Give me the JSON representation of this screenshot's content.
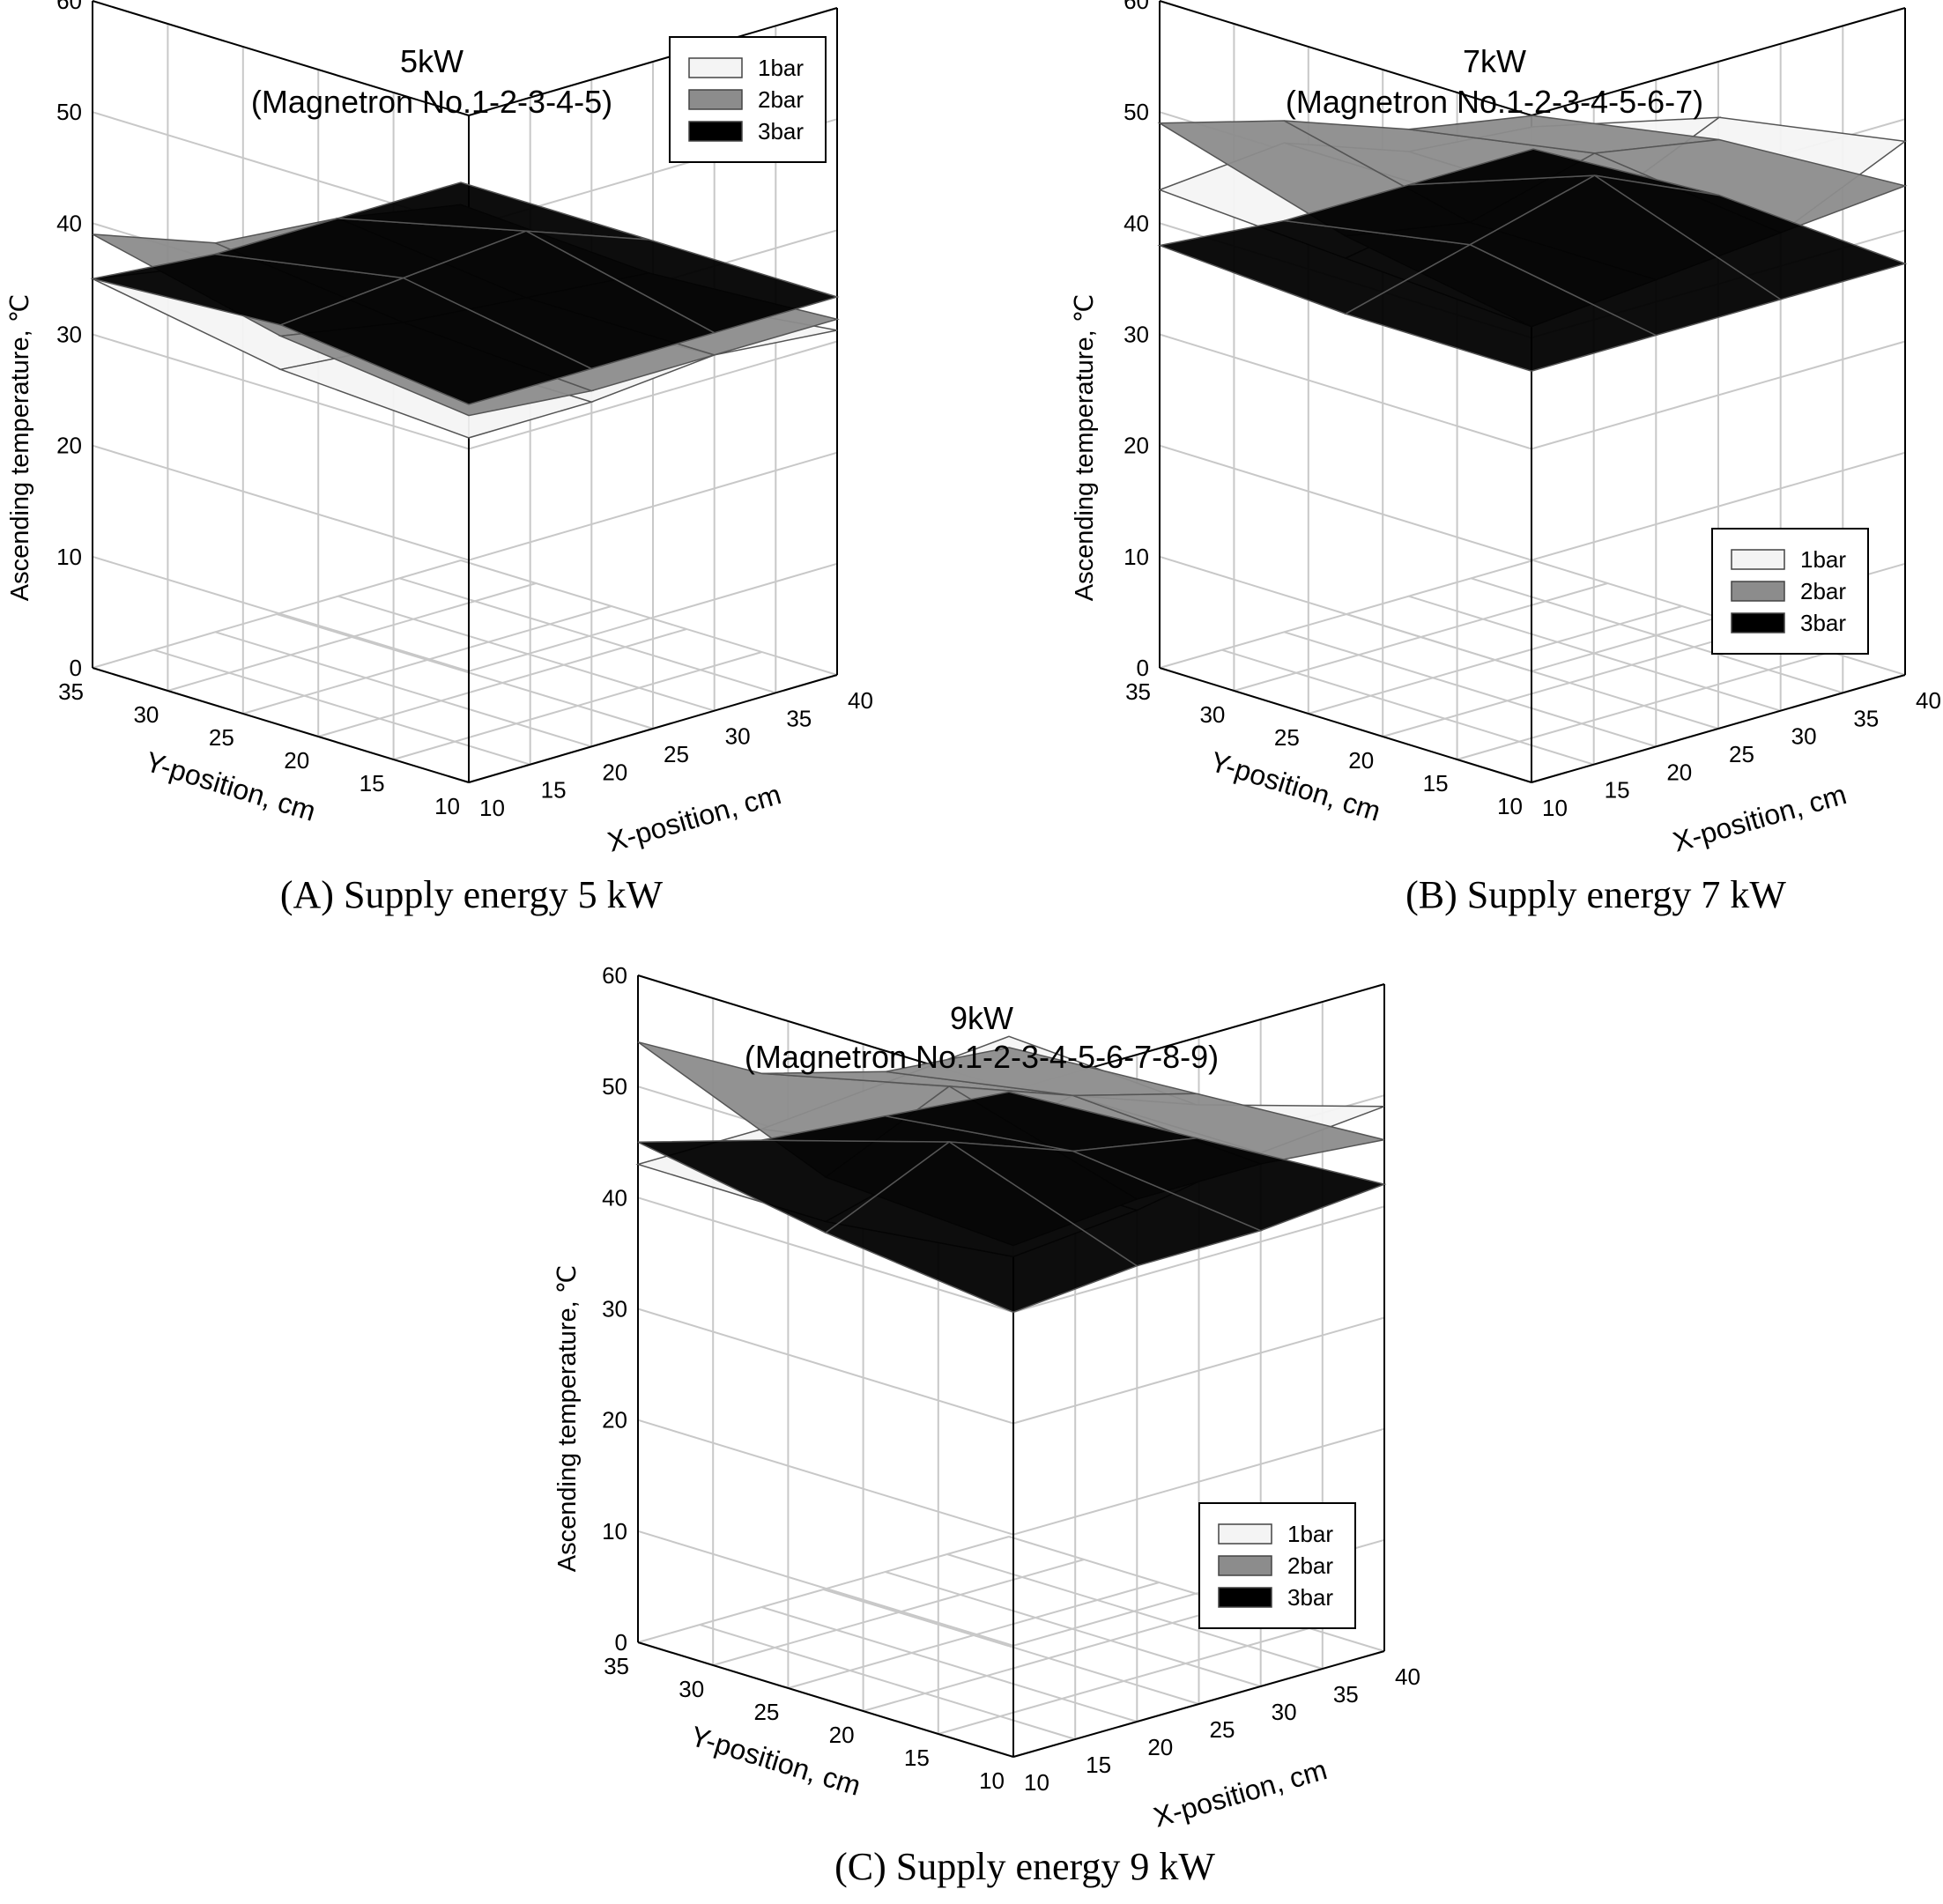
{
  "chart_data": [
    {
      "type": "surface3d",
      "title": "5kW",
      "subtitle": "(Magnetron No.1-2-3-4-5)",
      "caption": "(A) Supply energy 5 kW",
      "zlabel": "Ascending temperature, ℃",
      "xlabel": "X-position, cm",
      "ylabel": "Y-position, cm",
      "zlim": [
        0,
        60
      ],
      "z_ticks": [
        "0",
        "10",
        "20",
        "30",
        "40",
        "50",
        "60"
      ],
      "x_ticks": [
        "10",
        "15",
        "20",
        "25",
        "30",
        "35",
        "40"
      ],
      "y_ticks": [
        "10",
        "15",
        "20",
        "25",
        "30",
        "35"
      ],
      "legend_position": "top-right",
      "series": [
        {
          "name": "1bar",
          "color": "#f4f4f4",
          "grid": [
            [
              35,
              33,
              31,
              30
            ],
            [
              32,
              31,
              31,
              29
            ],
            [
              31,
              31,
              32,
              31
            ]
          ]
        },
        {
          "name": "2bar",
          "color": "#8c8c8c",
          "grid": [
            [
              39,
              35,
              34,
              32
            ],
            [
              35,
              33,
              32,
              31
            ],
            [
              33,
              32,
              32,
              32
            ]
          ]
        },
        {
          "name": "3bar",
          "color": "#000000",
          "grid": [
            [
              35,
              34,
              34,
              34
            ],
            [
              36,
              37,
              38,
              34
            ],
            [
              34,
              34,
              34,
              34
            ]
          ]
        }
      ]
    },
    {
      "type": "surface3d",
      "title": "7kW",
      "subtitle": "(Magnetron No.1-2-3-4-5-6-7)",
      "caption": "(B) Supply energy 7 kW",
      "zlabel": "Ascending temperature, ℃",
      "xlabel": "X-position, cm",
      "ylabel": "Y-position, cm",
      "zlim": [
        0,
        60
      ],
      "z_ticks": [
        "0",
        "10",
        "20",
        "30",
        "40",
        "50",
        "60"
      ],
      "x_ticks": [
        "10",
        "15",
        "20",
        "25",
        "30",
        "35",
        "40"
      ],
      "y_ticks": [
        "10",
        "15",
        "20",
        "25",
        "30",
        "35"
      ],
      "legend_position": "bottom-right",
      "series": [
        {
          "name": "1bar",
          "color": "#f4f4f4",
          "grid": [
            [
              43,
              44,
              40,
              39
            ],
            [
              42,
              44,
              40,
              45
            ],
            [
              41,
              42,
              43,
              48
            ]
          ]
        },
        {
          "name": "2bar",
          "color": "#8c8c8c",
          "grid": [
            [
              49,
              46,
              42,
              40
            ],
            [
              44,
              42,
              45,
              43
            ],
            [
              41,
              42,
              43,
              44
            ]
          ]
        },
        {
          "name": "3bar",
          "color": "#000000",
          "grid": [
            [
              38,
              37,
              37,
              37
            ],
            [
              37,
              40,
              43,
              38
            ],
            [
              37,
              37,
              37,
              37
            ]
          ]
        }
      ]
    },
    {
      "type": "surface3d",
      "title": "9kW",
      "subtitle": "(Magnetron No.1-2-3-4-5-6-7-8-9)",
      "caption": "(C) Supply energy 9 kW",
      "zlabel": "Ascending temperature, ℃",
      "xlabel": "X-position, cm",
      "ylabel": "Y-position, cm",
      "zlim": [
        0,
        60
      ],
      "z_ticks": [
        "0",
        "10",
        "20",
        "30",
        "40",
        "50",
        "60"
      ],
      "x_ticks": [
        "10",
        "15",
        "20",
        "25",
        "30",
        "35",
        "40"
      ],
      "y_ticks": [
        "10",
        "15",
        "20",
        "25",
        "30",
        "35"
      ],
      "legend_position": "bottom-right",
      "series": [
        {
          "name": "1bar",
          "color": "#f4f4f4",
          "grid": [
            [
              43,
              43,
              44,
              45
            ],
            [
              43,
              46,
              48,
              44
            ],
            [
              45,
              46,
              48,
              49
            ]
          ]
        },
        {
          "name": "2bar",
          "color": "#8c8c8c",
          "grid": [
            [
              54,
              48,
              45,
              44
            ],
            [
              47,
              52,
              48,
              45
            ],
            [
              46,
              47,
              47,
              46
            ]
          ]
        },
        {
          "name": "3bar",
          "color": "#000000",
          "grid": [
            [
              45,
              42,
              41,
              40
            ],
            [
              42,
              47,
              43,
              41
            ],
            [
              40,
              41,
              41,
              42
            ]
          ]
        }
      ]
    }
  ]
}
